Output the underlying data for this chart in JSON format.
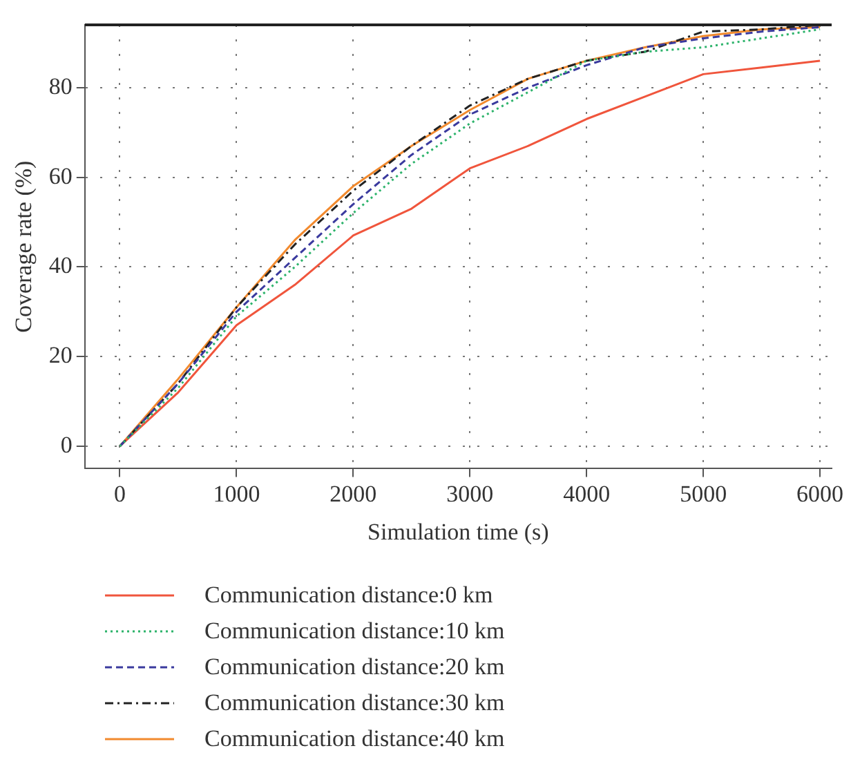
{
  "chart_data": {
    "type": "line",
    "xlabel": "Simulation time (s)",
    "ylabel": "Coverage rate (%)",
    "x": [
      0,
      500,
      1000,
      1500,
      2000,
      2500,
      3000,
      3500,
      4000,
      4500,
      5000,
      5500,
      6000
    ],
    "series": [
      {
        "name": "Communication distance:0 km",
        "color": "#f0553c",
        "line_style": "solid",
        "values": [
          0,
          12,
          27,
          36,
          47,
          53,
          62,
          67,
          73,
          78,
          83,
          84.5,
          86
        ]
      },
      {
        "name": "Communication distance:10 km",
        "color": "#2db36b",
        "line_style": "dotted",
        "values": [
          0,
          13,
          29,
          40,
          52,
          63,
          72,
          79,
          86,
          88,
          89,
          91,
          93
        ]
      },
      {
        "name": "Communication distance:20 km",
        "color": "#3a3a9e",
        "line_style": "dashed",
        "values": [
          0,
          14,
          30,
          42,
          54,
          65,
          74,
          80,
          85,
          89,
          91,
          92.5,
          93.5
        ]
      },
      {
        "name": "Communication distance:30 km",
        "color": "#222222",
        "line_style": "dashdot",
        "values": [
          0,
          14,
          31,
          45,
          57,
          67,
          76,
          82,
          86,
          88,
          92.5,
          93,
          94
        ]
      },
      {
        "name": "Communication distance:40 km",
        "color": "#f28a2e",
        "line_style": "solid",
        "values": [
          0,
          15,
          31,
          46,
          58,
          67,
          75,
          82,
          86,
          89,
          91.5,
          93,
          93.5
        ]
      }
    ],
    "xlim": [
      -300,
      6100
    ],
    "xticks": [
      0,
      1000,
      2000,
      3000,
      4000,
      5000,
      6000
    ],
    "ylim": [
      -5,
      94
    ],
    "yticks": [
      0,
      20,
      40,
      60,
      80
    ],
    "grid": true,
    "legend": "bottom",
    "marker": "none"
  }
}
